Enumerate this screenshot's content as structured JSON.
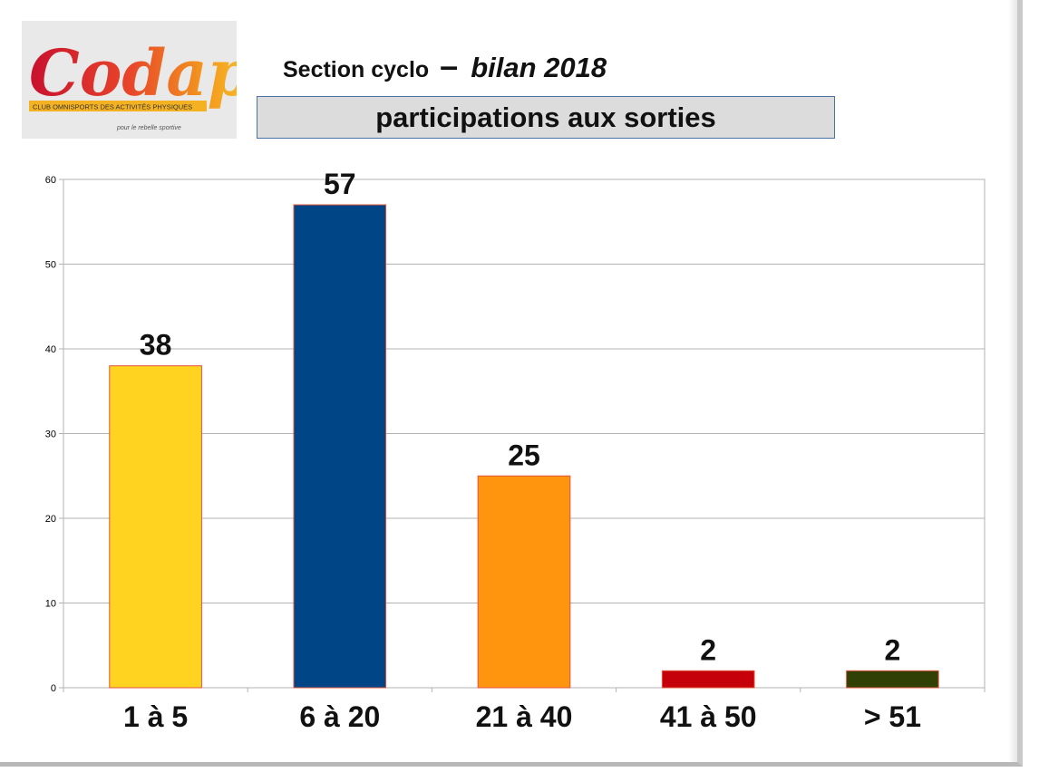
{
  "header": {
    "section_label": "Section cyclo",
    "dash": "–",
    "year_label": "bilan 2018",
    "subtitle": "participations aux sorties"
  },
  "logo": {
    "name": "Codap",
    "tagline": "Club Omnisports Des Activités Physiques",
    "slogan": "pour le rebelle sportive"
  },
  "chart_data": {
    "type": "bar",
    "categories": [
      "1 à 5",
      "6 à 20",
      "21 à 40",
      "41 à 50",
      "> 51"
    ],
    "values": [
      38,
      57,
      25,
      2,
      2
    ],
    "bar_colors": [
      "#ffd320",
      "#004586",
      "#ff950e",
      "#c5000b",
      "#314004"
    ],
    "title": "participations aux sorties",
    "xlabel": "",
    "ylabel": "",
    "ylim": [
      0,
      60
    ],
    "yticks": [
      0,
      10,
      20,
      30,
      40,
      50,
      60
    ],
    "grid": true,
    "legend": "none",
    "data_labels": true
  }
}
